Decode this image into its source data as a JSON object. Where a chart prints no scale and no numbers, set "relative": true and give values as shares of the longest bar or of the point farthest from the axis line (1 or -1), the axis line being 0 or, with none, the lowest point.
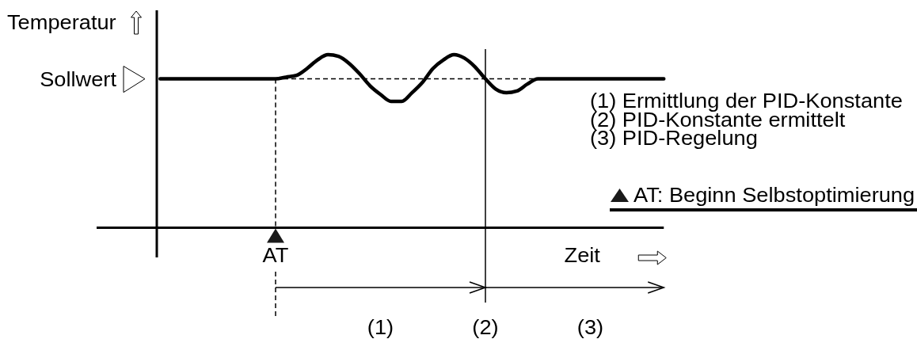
{
  "chart_data": {
    "type": "line",
    "relative": true,
    "ylabel": "Temperatur",
    "xlabel": "Zeit",
    "categories": [
      null,
      null,
      null,
      null,
      null,
      null,
      null,
      null,
      null,
      null,
      null,
      "AT",
      null,
      null,
      null,
      null,
      null,
      null,
      null,
      null,
      null,
      "(1)",
      null,
      null,
      null,
      null,
      null,
      null,
      null,
      null,
      null,
      "(2)",
      null,
      null,
      null,
      null,
      null,
      null,
      null,
      null,
      null,
      "(3)",
      null,
      null,
      null,
      null,
      null,
      null,
      null
    ],
    "series": [
      {
        "color": "#000000",
        "values": [
          0.86,
          0.86,
          0.86,
          0.86,
          0.86,
          0.86,
          0.86,
          0.86,
          0.86,
          0.86,
          0.86,
          0.86,
          0.87,
          0.88,
          0.92,
          0.97,
          1,
          0.99,
          0.95,
          0.89,
          0.82,
          0.77,
          0.73,
          0.73,
          0.78,
          0.84,
          0.92,
          0.97,
          1,
          0.98,
          0.93,
          0.86,
          0.8,
          0.78,
          0.79,
          0.83,
          0.86,
          0.86,
          0.86,
          0.86,
          0.86,
          0.86,
          0.86,
          0.86,
          0.86,
          0.86,
          0.86,
          0.86,
          0.86
        ]
      }
    ],
    "ref_lines": [
      {
        "axis": "y",
        "value": 0.86,
        "label": "Sollwert",
        "line_style": "dashed"
      },
      {
        "axis": "x",
        "value": "AT",
        "line_style": "dashed"
      },
      {
        "axis": "x",
        "value": "(2)",
        "line_style": "solid"
      }
    ],
    "annotations": [
      "(1) Ermittlung der PID-Konstante",
      "(2) PID-Konstante ermittelt",
      "(3) PID-Regelung",
      "AT: Beginn Selbstoptimierung"
    ]
  }
}
